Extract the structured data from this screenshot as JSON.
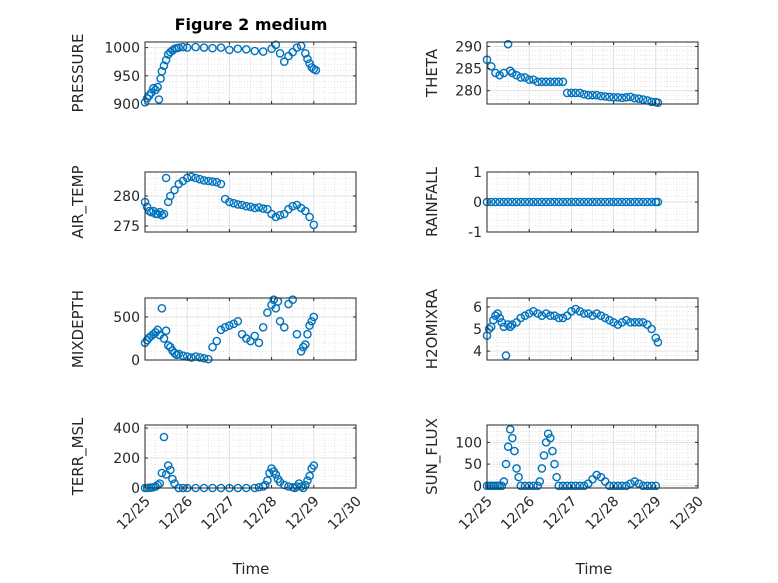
{
  "chart_data": {
    "title": "Figure 2 medium",
    "type": "scatter",
    "marker_color": "#0072BD",
    "x_tick_labels": [
      "12/25",
      "12/26",
      "12/27",
      "12/28",
      "12/29",
      "12/30"
    ],
    "xlabel": "Time",
    "xlim_days": [
      0,
      5
    ],
    "panels": [
      {
        "id": "pressure",
        "ylabel": "PRESSURE",
        "ylim": [
          900,
          1010
        ],
        "yticks": [
          900,
          950,
          1000
        ],
        "x": [
          0,
          0.05,
          0.1,
          0.15,
          0.2,
          0.25,
          0.3,
          0.33,
          0.37,
          0.4,
          0.45,
          0.5,
          0.55,
          0.6,
          0.65,
          0.7,
          0.75,
          0.8,
          0.9,
          1.0,
          1.2,
          1.4,
          1.6,
          1.8,
          2.0,
          2.2,
          2.4,
          2.6,
          2.8,
          3.0,
          3.1,
          3.2,
          3.3,
          3.4,
          3.5,
          3.6,
          3.7,
          3.8,
          3.85,
          3.9,
          3.95,
          4.0,
          4.05
        ],
        "y": [
          903,
          910,
          915,
          920,
          928,
          925,
          930,
          908,
          945,
          958,
          968,
          978,
          988,
          992,
          995,
          998,
          999,
          1000,
          1001,
          1000,
          1001,
          1000,
          999,
          1000,
          996,
          998,
          997,
          994,
          993,
          998,
          1005,
          990,
          975,
          985,
          992,
          1000,
          1003,
          990,
          980,
          972,
          965,
          962,
          960
        ]
      },
      {
        "id": "theta",
        "ylabel": "THETA",
        "ylim": [
          277,
          291
        ],
        "yticks": [
          280,
          285,
          290
        ],
        "x": [
          0,
          0.1,
          0.2,
          0.3,
          0.4,
          0.5,
          0.55,
          0.6,
          0.7,
          0.8,
          0.9,
          1.0,
          1.1,
          1.2,
          1.3,
          1.4,
          1.5,
          1.6,
          1.7,
          1.8,
          1.9,
          2.0,
          2.1,
          2.2,
          2.3,
          2.4,
          2.5,
          2.6,
          2.7,
          2.8,
          2.9,
          3.0,
          3.1,
          3.2,
          3.3,
          3.4,
          3.5,
          3.6,
          3.7,
          3.8,
          3.9,
          4.0,
          4.05
        ],
        "y": [
          287,
          285.5,
          284,
          283.5,
          284,
          290.5,
          284.5,
          284,
          283.5,
          283,
          283,
          282.5,
          282.5,
          282,
          282,
          282,
          282,
          282,
          282,
          282,
          279.5,
          279.5,
          279.5,
          279.5,
          279.2,
          279,
          279,
          279,
          278.8,
          278.7,
          278.6,
          278.5,
          278.5,
          278.4,
          278.5,
          278.6,
          278.3,
          278.2,
          278,
          277.8,
          277.5,
          277.4,
          277.3
        ]
      },
      {
        "id": "air_temp",
        "ylabel": "AIR_TEMP",
        "ylim": [
          274,
          284
        ],
        "yticks": [
          275,
          280
        ],
        "x": [
          0,
          0.05,
          0.1,
          0.15,
          0.2,
          0.25,
          0.3,
          0.35,
          0.4,
          0.45,
          0.5,
          0.55,
          0.6,
          0.7,
          0.8,
          0.9,
          1.0,
          1.1,
          1.2,
          1.3,
          1.4,
          1.5,
          1.6,
          1.7,
          1.8,
          1.9,
          2.0,
          2.1,
          2.2,
          2.3,
          2.4,
          2.5,
          2.6,
          2.7,
          2.8,
          2.9,
          3.0,
          3.1,
          3.2,
          3.3,
          3.4,
          3.5,
          3.6,
          3.7,
          3.8,
          3.9,
          4.0
        ],
        "y": [
          279,
          278.2,
          277.5,
          277.3,
          277.5,
          277,
          277,
          277.3,
          276.8,
          277,
          283,
          279,
          280,
          281,
          282,
          282.5,
          283,
          283.2,
          283,
          282.8,
          282.6,
          282.5,
          282.4,
          282.3,
          282,
          279.5,
          279,
          278.8,
          278.6,
          278.5,
          278.3,
          278.2,
          278,
          278.1,
          277.9,
          277.8,
          277,
          276.5,
          276.8,
          277,
          277.8,
          278.3,
          278.5,
          278,
          277.5,
          276.5,
          275.2
        ]
      },
      {
        "id": "rainfall",
        "ylabel": "RAINFALL",
        "ylim": [
          -1,
          1
        ],
        "yticks": [
          -1,
          0,
          1
        ],
        "x": [
          0,
          0.1,
          0.2,
          0.3,
          0.4,
          0.5,
          0.6,
          0.7,
          0.8,
          0.9,
          1.0,
          1.1,
          1.2,
          1.3,
          1.4,
          1.5,
          1.6,
          1.7,
          1.8,
          1.9,
          2.0,
          2.1,
          2.2,
          2.3,
          2.4,
          2.5,
          2.6,
          2.7,
          2.8,
          2.9,
          3.0,
          3.1,
          3.2,
          3.3,
          3.4,
          3.5,
          3.6,
          3.7,
          3.8,
          3.9,
          4.0,
          4.05
        ],
        "y": [
          0,
          0,
          0,
          0,
          0,
          0,
          0,
          0,
          0,
          0,
          0,
          0,
          0,
          0,
          0,
          0,
          0,
          0,
          0,
          0,
          0,
          0,
          0,
          0,
          0,
          0,
          0,
          0,
          0,
          0,
          0,
          0,
          0,
          0,
          0,
          0,
          0,
          0,
          0,
          0,
          0,
          0
        ]
      },
      {
        "id": "mixdepth",
        "ylabel": "MIXDEPTH",
        "ylim": [
          0,
          720
        ],
        "yticks": [
          0,
          500
        ],
        "x": [
          0,
          0.05,
          0.1,
          0.15,
          0.2,
          0.25,
          0.3,
          0.35,
          0.4,
          0.45,
          0.5,
          0.55,
          0.6,
          0.65,
          0.7,
          0.75,
          0.8,
          0.9,
          1.0,
          1.1,
          1.2,
          1.3,
          1.4,
          1.5,
          1.6,
          1.7,
          1.8,
          1.9,
          2.0,
          2.1,
          2.2,
          2.3,
          2.4,
          2.5,
          2.6,
          2.7,
          2.8,
          2.9,
          3.0,
          3.05,
          3.1,
          3.15,
          3.2,
          3.3,
          3.4,
          3.5,
          3.6,
          3.7,
          3.75,
          3.8,
          3.85,
          3.9,
          3.95,
          4.0
        ],
        "y": [
          200,
          230,
          260,
          280,
          300,
          320,
          350,
          290,
          600,
          250,
          340,
          170,
          150,
          110,
          80,
          60,
          70,
          50,
          40,
          30,
          40,
          30,
          20,
          10,
          150,
          220,
          350,
          380,
          400,
          420,
          450,
          300,
          250,
          220,
          280,
          200,
          380,
          550,
          640,
          700,
          600,
          680,
          450,
          380,
          650,
          700,
          300,
          100,
          150,
          180,
          300,
          400,
          450,
          500
        ]
      },
      {
        "id": "h2omixra",
        "ylabel": "H2OMIXRA",
        "ylim": [
          3.6,
          6.4
        ],
        "yticks": [
          4,
          5,
          6
        ],
        "x": [
          0,
          0.05,
          0.1,
          0.15,
          0.2,
          0.25,
          0.3,
          0.35,
          0.4,
          0.45,
          0.5,
          0.55,
          0.6,
          0.7,
          0.8,
          0.9,
          1.0,
          1.1,
          1.2,
          1.3,
          1.4,
          1.5,
          1.6,
          1.7,
          1.8,
          1.9,
          2.0,
          2.1,
          2.2,
          2.3,
          2.4,
          2.5,
          2.6,
          2.7,
          2.8,
          2.9,
          3.0,
          3.1,
          3.2,
          3.3,
          3.4,
          3.5,
          3.6,
          3.7,
          3.8,
          3.9,
          4.0,
          4.05
        ],
        "y": [
          4.7,
          5.0,
          5.1,
          5.4,
          5.6,
          5.7,
          5.5,
          5.3,
          5.1,
          3.8,
          5.2,
          5.1,
          5.2,
          5.3,
          5.5,
          5.6,
          5.7,
          5.8,
          5.7,
          5.6,
          5.7,
          5.6,
          5.6,
          5.5,
          5.5,
          5.6,
          5.8,
          5.9,
          5.8,
          5.7,
          5.7,
          5.6,
          5.7,
          5.6,
          5.5,
          5.4,
          5.3,
          5.2,
          5.3,
          5.4,
          5.3,
          5.3,
          5.3,
          5.3,
          5.2,
          5.0,
          4.6,
          4.4
        ]
      },
      {
        "id": "terr_msl",
        "ylabel": "TERR_MSL",
        "ylim": [
          0,
          420
        ],
        "yticks": [
          0,
          200,
          400
        ],
        "x": [
          0,
          0.05,
          0.1,
          0.15,
          0.2,
          0.25,
          0.3,
          0.35,
          0.4,
          0.45,
          0.5,
          0.55,
          0.6,
          0.65,
          0.7,
          0.8,
          0.9,
          1.0,
          1.2,
          1.4,
          1.6,
          1.8,
          2.0,
          2.2,
          2.4,
          2.6,
          2.7,
          2.8,
          2.85,
          2.9,
          2.95,
          3.0,
          3.05,
          3.1,
          3.15,
          3.2,
          3.3,
          3.4,
          3.5,
          3.55,
          3.6,
          3.65,
          3.7,
          3.75,
          3.8,
          3.85,
          3.9,
          3.95,
          4.0
        ],
        "y": [
          0,
          0,
          2,
          3,
          5,
          10,
          20,
          30,
          100,
          340,
          90,
          150,
          120,
          60,
          30,
          0,
          0,
          0,
          0,
          0,
          0,
          0,
          0,
          0,
          0,
          0,
          5,
          10,
          20,
          50,
          100,
          130,
          110,
          90,
          60,
          40,
          20,
          10,
          5,
          0,
          10,
          30,
          10,
          0,
          20,
          50,
          80,
          130,
          150
        ]
      },
      {
        "id": "sun_flux",
        "ylabel": "SUN_FLUX",
        "ylim": [
          -5,
          140
        ],
        "yticks": [
          0,
          50,
          100
        ],
        "x": [
          0,
          0.05,
          0.1,
          0.15,
          0.2,
          0.25,
          0.3,
          0.35,
          0.4,
          0.45,
          0.5,
          0.55,
          0.6,
          0.65,
          0.7,
          0.75,
          0.8,
          0.9,
          1.0,
          1.1,
          1.2,
          1.25,
          1.3,
          1.35,
          1.4,
          1.45,
          1.5,
          1.55,
          1.6,
          1.65,
          1.7,
          1.8,
          1.9,
          2.0,
          2.1,
          2.2,
          2.3,
          2.4,
          2.5,
          2.6,
          2.7,
          2.8,
          2.9,
          3.0,
          3.1,
          3.2,
          3.3,
          3.4,
          3.5,
          3.6,
          3.7,
          3.8,
          3.9,
          4.0
        ],
        "y": [
          0,
          0,
          0,
          0,
          0,
          0,
          0,
          0,
          10,
          50,
          90,
          130,
          110,
          80,
          40,
          20,
          0,
          0,
          0,
          0,
          0,
          10,
          40,
          70,
          100,
          120,
          110,
          80,
          50,
          20,
          0,
          0,
          0,
          0,
          0,
          0,
          0,
          5,
          15,
          25,
          20,
          10,
          0,
          0,
          0,
          0,
          0,
          5,
          10,
          5,
          0,
          0,
          0,
          0
        ]
      }
    ]
  }
}
